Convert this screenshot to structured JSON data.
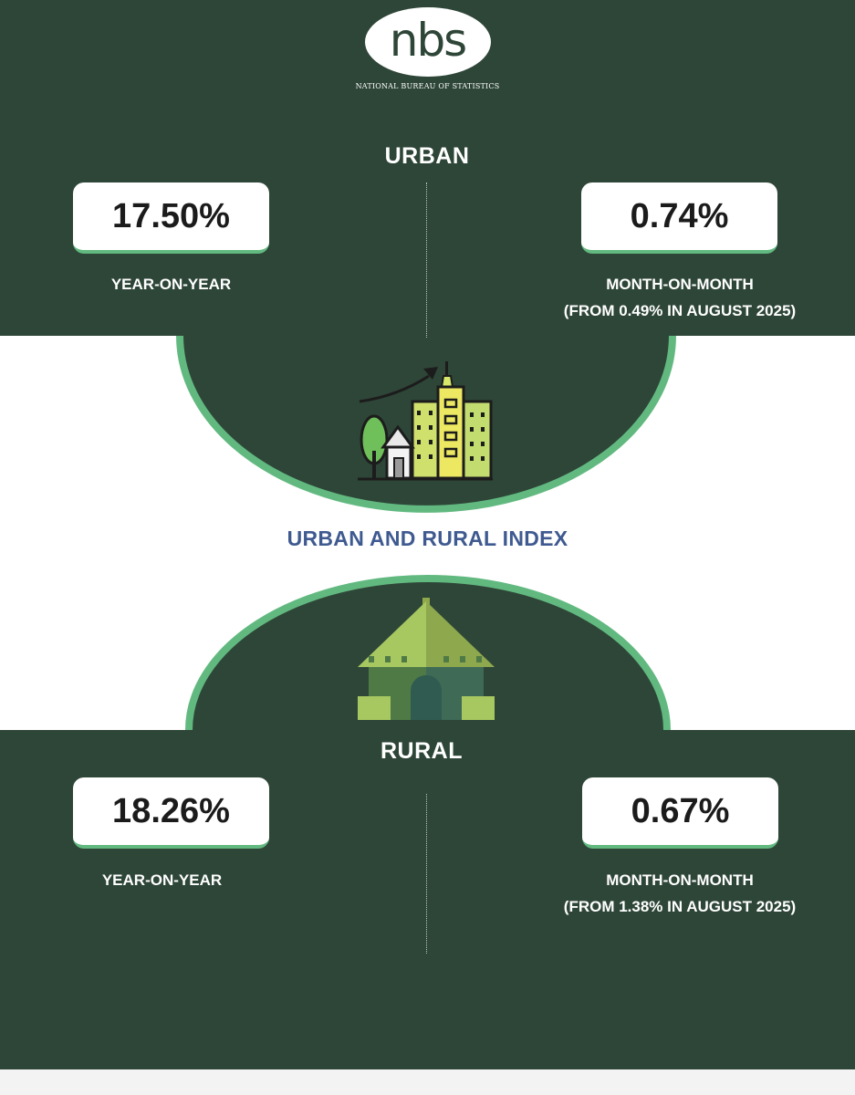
{
  "logo": {
    "mark": "nbs",
    "subtitle": "NATIONAL BUREAU OF STATISTICS"
  },
  "urban": {
    "title": "URBAN",
    "year_on_year": {
      "value": "17.50%",
      "label": "YEAR-ON-YEAR"
    },
    "month_on_month": {
      "value": "0.74%",
      "label": "MONTH-ON-MONTH",
      "note": "(FROM 0.49% IN AUGUST 2025)"
    },
    "icon": "city-growth-icon"
  },
  "index_title": "URBAN AND RURAL INDEX",
  "rural": {
    "title": "RURAL",
    "year_on_year": {
      "value": "18.26%",
      "label": "YEAR-ON-YEAR"
    },
    "month_on_month": {
      "value": "0.67%",
      "label": "MONTH-ON-MONTH",
      "note": "(FROM 1.38% IN AUGUST 2025)"
    },
    "icon": "rural-hut-icon"
  },
  "colors": {
    "background_dark": "#2e4638",
    "accent_green": "#62b980",
    "title_blue": "#3f5a90",
    "white": "#ffffff"
  }
}
